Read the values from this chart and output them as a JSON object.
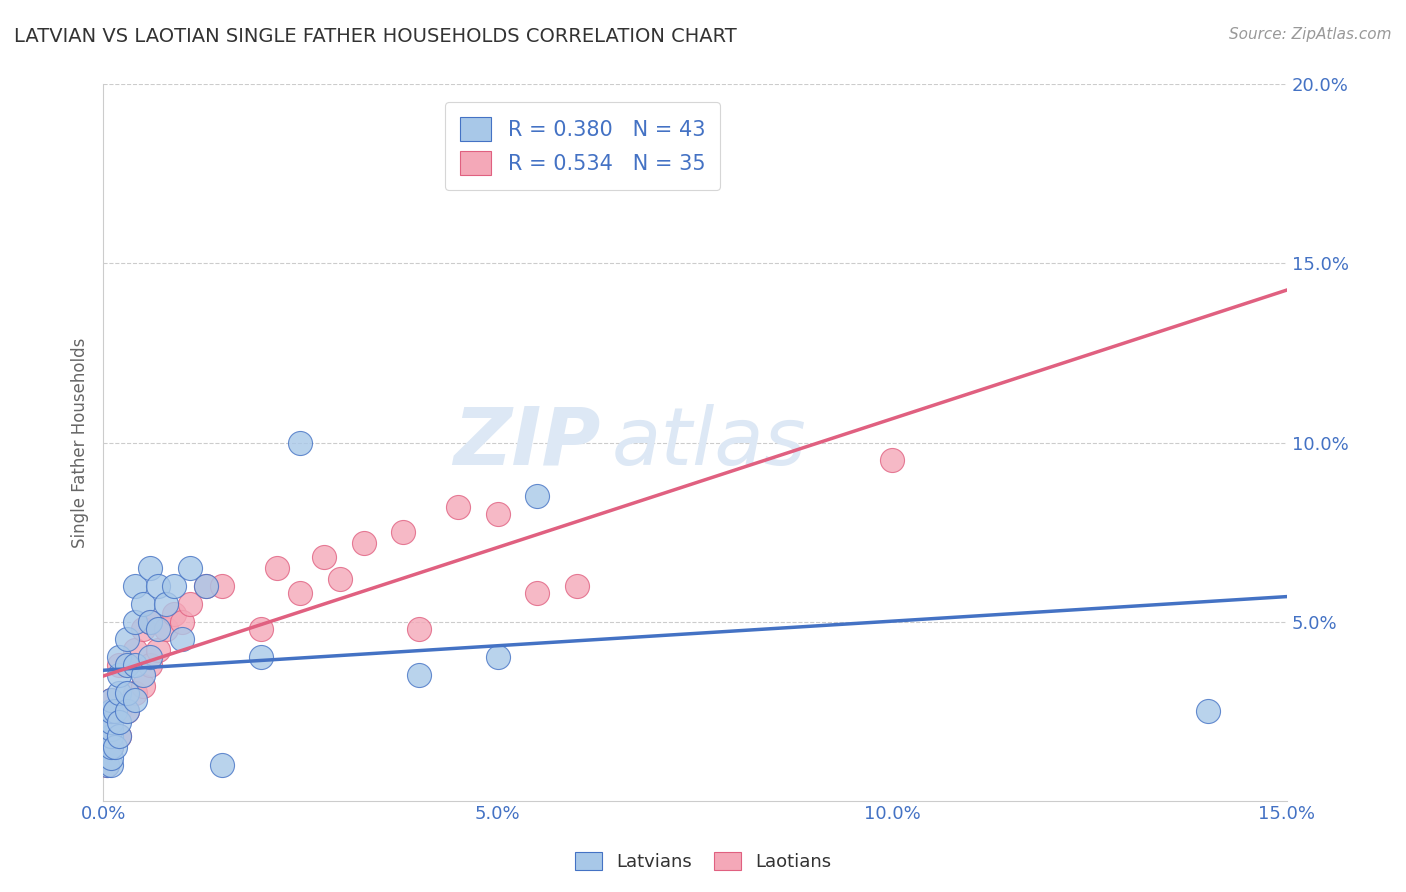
{
  "title": "LATVIAN VS LAOTIAN SINGLE FATHER HOUSEHOLDS CORRELATION CHART",
  "source": "Source: ZipAtlas.com",
  "ylabel": "Single Father Households",
  "xlim": [
    0.0,
    0.15
  ],
  "ylim": [
    0.0,
    0.2
  ],
  "xticks": [
    0.0,
    0.05,
    0.1,
    0.15
  ],
  "yticks": [
    0.0,
    0.05,
    0.1,
    0.15,
    0.2
  ],
  "xtick_labels": [
    "0.0%",
    "5.0%",
    "10.0%",
    "15.0%"
  ],
  "ytick_labels": [
    "",
    "5.0%",
    "10.0%",
    "15.0%",
    "20.0%"
  ],
  "latvian_color": "#a8c8e8",
  "laotian_color": "#f4a8b8",
  "latvian_R": 0.38,
  "latvian_N": 43,
  "laotian_R": 0.534,
  "laotian_N": 35,
  "watermark_zip": "ZIP",
  "watermark_atlas": "atlas",
  "grid_color": "#cccccc",
  "background_color": "#ffffff",
  "title_color": "#333333",
  "axis_label_color": "#666666",
  "tick_label_color": "#4472c4",
  "legend_R_color": "#4472c4",
  "line_blue": "#4472c4",
  "line_pink": "#e06080",
  "latvian_x": [
    0.0005,
    0.001,
    0.001,
    0.001,
    0.001,
    0.001,
    0.001,
    0.001,
    0.001,
    0.0015,
    0.0015,
    0.002,
    0.002,
    0.002,
    0.002,
    0.002,
    0.003,
    0.003,
    0.003,
    0.003,
    0.004,
    0.004,
    0.004,
    0.004,
    0.005,
    0.005,
    0.006,
    0.006,
    0.006,
    0.007,
    0.007,
    0.008,
    0.009,
    0.01,
    0.011,
    0.013,
    0.015,
    0.02,
    0.025,
    0.04,
    0.05,
    0.055,
    0.14
  ],
  "latvian_y": [
    0.01,
    0.01,
    0.012,
    0.015,
    0.018,
    0.02,
    0.022,
    0.025,
    0.028,
    0.015,
    0.025,
    0.018,
    0.022,
    0.03,
    0.035,
    0.04,
    0.025,
    0.03,
    0.038,
    0.045,
    0.028,
    0.038,
    0.05,
    0.06,
    0.035,
    0.055,
    0.04,
    0.05,
    0.065,
    0.048,
    0.06,
    0.055,
    0.06,
    0.045,
    0.065,
    0.06,
    0.01,
    0.04,
    0.1,
    0.035,
    0.04,
    0.085,
    0.025
  ],
  "laotian_x": [
    0.0005,
    0.001,
    0.001,
    0.001,
    0.002,
    0.002,
    0.002,
    0.003,
    0.003,
    0.004,
    0.004,
    0.005,
    0.005,
    0.006,
    0.006,
    0.007,
    0.008,
    0.009,
    0.01,
    0.011,
    0.013,
    0.015,
    0.02,
    0.022,
    0.025,
    0.028,
    0.03,
    0.033,
    0.038,
    0.04,
    0.045,
    0.05,
    0.055,
    0.06,
    0.1
  ],
  "laotian_y": [
    0.01,
    0.015,
    0.02,
    0.028,
    0.018,
    0.025,
    0.038,
    0.025,
    0.038,
    0.03,
    0.042,
    0.032,
    0.048,
    0.038,
    0.05,
    0.042,
    0.048,
    0.052,
    0.05,
    0.055,
    0.06,
    0.06,
    0.048,
    0.065,
    0.058,
    0.068,
    0.062,
    0.072,
    0.075,
    0.048,
    0.082,
    0.08,
    0.058,
    0.06,
    0.095
  ]
}
